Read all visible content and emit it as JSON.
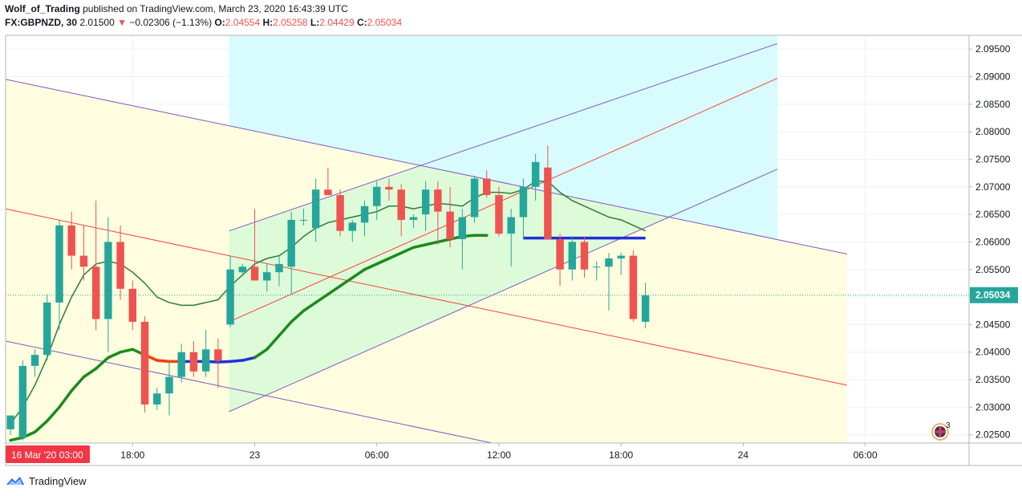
{
  "header": {
    "author": "Wolf_of_Trading",
    "published": "published on TradingView.com, March 23, 2020 16:43:39 UTC",
    "symbol": "FX:GBPNZD, 30",
    "price": "2.01500",
    "change": "−0.02306 (−1.13%)",
    "o_label": "O:",
    "o": "2.04554",
    "h_label": "H:",
    "h": "2.05258",
    "l_label": "L:",
    "l": "2.04429",
    "c_label": "C:",
    "c": "2.05034"
  },
  "footer": {
    "brand": "TradingView",
    "logo_icon": "tradingview-cloud-icon"
  },
  "flag_badge": {
    "icon": "uk-flag-icon",
    "count": "3"
  },
  "chart_data": {
    "type": "candlestick",
    "y_ticks": [
      "2.09500",
      "2.09000",
      "2.08500",
      "2.08000",
      "2.07500",
      "2.07000",
      "2.06500",
      "2.06000",
      "2.05500",
      "2.05000",
      "2.04500",
      "2.04000",
      "2.03500",
      "2.03000",
      "2.02500"
    ],
    "y_tick_values": [
      2.095,
      2.09,
      2.085,
      2.08,
      2.075,
      2.07,
      2.065,
      2.06,
      2.055,
      2.05,
      2.045,
      2.04,
      2.035,
      2.03,
      2.025
    ],
    "ylim": [
      2.0235,
      2.0975
    ],
    "x_ticks": [
      {
        "label": "18:00",
        "bar": 10
      },
      {
        "label": "23",
        "bar": 20
      },
      {
        "label": "06:00",
        "bar": 30
      },
      {
        "label": "12:00",
        "bar": 40
      },
      {
        "label": "18:00",
        "bar": 50
      },
      {
        "label": "24",
        "bar": 60
      },
      {
        "label": "06:00",
        "bar": 70
      }
    ],
    "x_range_bars": [
      -0.4,
      78.5
    ],
    "first_bar_label": "16 Mar '20  03:00",
    "last_price_label": "2.05034",
    "last_price": 2.05034,
    "colors": {
      "up": "#26a69a",
      "down": "#ef5350",
      "ma_thin": "#2e7d32",
      "ma_thick": "#1b8a1b",
      "channel": "#7e57c2",
      "median": "#f44336"
    },
    "candles": [
      {
        "o": 2.026,
        "h": 2.0285,
        "l": 2.025,
        "c": 2.0285
      },
      {
        "o": 2.0245,
        "h": 2.0385,
        "l": 2.024,
        "c": 2.0375
      },
      {
        "o": 2.0375,
        "h": 2.0405,
        "l": 2.0355,
        "c": 2.0395
      },
      {
        "o": 2.0395,
        "h": 2.0505,
        "l": 2.0385,
        "c": 2.049
      },
      {
        "o": 2.049,
        "h": 2.064,
        "l": 2.044,
        "c": 2.063
      },
      {
        "o": 2.063,
        "h": 2.0655,
        "l": 2.055,
        "c": 2.0575
      },
      {
        "o": 2.0575,
        "h": 2.063,
        "l": 2.053,
        "c": 2.0555
      },
      {
        "o": 2.0555,
        "h": 2.0675,
        "l": 2.044,
        "c": 2.046
      },
      {
        "o": 2.046,
        "h": 2.0645,
        "l": 2.04,
        "c": 2.06
      },
      {
        "o": 2.06,
        "h": 2.063,
        "l": 2.0495,
        "c": 2.0515
      },
      {
        "o": 2.0515,
        "h": 2.053,
        "l": 2.044,
        "c": 2.0455
      },
      {
        "o": 2.0455,
        "h": 2.0465,
        "l": 2.029,
        "c": 2.0305
      },
      {
        "o": 2.0305,
        "h": 2.0335,
        "l": 2.0295,
        "c": 2.0325
      },
      {
        "o": 2.0325,
        "h": 2.0385,
        "l": 2.0285,
        "c": 2.0355
      },
      {
        "o": 2.0355,
        "h": 2.0415,
        "l": 2.0345,
        "c": 2.04
      },
      {
        "o": 2.04,
        "h": 2.042,
        "l": 2.0355,
        "c": 2.0365
      },
      {
        "o": 2.0365,
        "h": 2.044,
        "l": 2.0355,
        "c": 2.0405
      },
      {
        "o": 2.0405,
        "h": 2.0425,
        "l": 2.0335,
        "c": 2.0385
      },
      {
        "o": 2.045,
        "h": 2.0575,
        "l": 2.0445,
        "c": 2.055
      },
      {
        "o": 2.0545,
        "h": 2.056,
        "l": 2.054,
        "c": 2.0555
      },
      {
        "o": 2.0555,
        "h": 2.066,
        "l": 2.053,
        "c": 2.053
      },
      {
        "o": 2.053,
        "h": 2.056,
        "l": 2.051,
        "c": 2.0545
      },
      {
        "o": 2.0545,
        "h": 2.0575,
        "l": 2.052,
        "c": 2.056
      },
      {
        "o": 2.0555,
        "h": 2.0655,
        "l": 2.0505,
        "c": 2.064
      },
      {
        "o": 2.064,
        "h": 2.066,
        "l": 2.063,
        "c": 2.064
      },
      {
        "o": 2.0625,
        "h": 2.0715,
        "l": 2.06,
        "c": 2.0695
      },
      {
        "o": 2.0695,
        "h": 2.0735,
        "l": 2.0685,
        "c": 2.0685
      },
      {
        "o": 2.0685,
        "h": 2.0695,
        "l": 2.061,
        "c": 2.062
      },
      {
        "o": 2.062,
        "h": 2.064,
        "l": 2.06,
        "c": 2.0635
      },
      {
        "o": 2.0635,
        "h": 2.0675,
        "l": 2.061,
        "c": 2.0665
      },
      {
        "o": 2.0665,
        "h": 2.071,
        "l": 2.064,
        "c": 2.07
      },
      {
        "o": 2.07,
        "h": 2.0715,
        "l": 2.0675,
        "c": 2.0695
      },
      {
        "o": 2.0695,
        "h": 2.0705,
        "l": 2.061,
        "c": 2.064
      },
      {
        "o": 2.064,
        "h": 2.065,
        "l": 2.0625,
        "c": 2.0645
      },
      {
        "o": 2.065,
        "h": 2.071,
        "l": 2.062,
        "c": 2.0695
      },
      {
        "o": 2.0695,
        "h": 2.071,
        "l": 2.0595,
        "c": 2.0655
      },
      {
        "o": 2.0655,
        "h": 2.07,
        "l": 2.059,
        "c": 2.0605
      },
      {
        "o": 2.0605,
        "h": 2.066,
        "l": 2.055,
        "c": 2.0645
      },
      {
        "o": 2.0645,
        "h": 2.072,
        "l": 2.0635,
        "c": 2.0715
      },
      {
        "o": 2.0715,
        "h": 2.073,
        "l": 2.068,
        "c": 2.0685
      },
      {
        "o": 2.0685,
        "h": 2.07,
        "l": 2.061,
        "c": 2.0615
      },
      {
        "o": 2.0615,
        "h": 2.066,
        "l": 2.0555,
        "c": 2.0645
      },
      {
        "o": 2.0645,
        "h": 2.0715,
        "l": 2.0605,
        "c": 2.07
      },
      {
        "o": 2.07,
        "h": 2.076,
        "l": 2.0675,
        "c": 2.0745
      },
      {
        "o": 2.0735,
        "h": 2.0775,
        "l": 2.061,
        "c": 2.0605
      },
      {
        "o": 2.0605,
        "h": 2.0615,
        "l": 2.052,
        "c": 2.055
      },
      {
        "o": 2.055,
        "h": 2.061,
        "l": 2.053,
        "c": 2.06
      },
      {
        "o": 2.06,
        "h": 2.061,
        "l": 2.0535,
        "c": 2.055
      },
      {
        "o": 2.0555,
        "h": 2.0565,
        "l": 2.053,
        "c": 2.0555
      },
      {
        "o": 2.0555,
        "h": 2.058,
        "l": 2.0475,
        "c": 2.057
      },
      {
        "o": 2.057,
        "h": 2.058,
        "l": 2.054,
        "c": 2.0575
      },
      {
        "o": 2.0575,
        "h": 2.0585,
        "l": 2.0455,
        "c": 2.046
      },
      {
        "o": 2.0455,
        "h": 2.0526,
        "l": 2.0443,
        "c": 2.0503
      }
    ],
    "ma_thin": [
      2.027,
      2.03,
      2.034,
      2.039,
      2.045,
      2.05,
      2.054,
      2.056,
      2.0565,
      2.056,
      2.0545,
      2.0525,
      2.05,
      2.049,
      2.0485,
      2.0485,
      2.049,
      2.0495,
      2.052,
      2.054,
      2.056,
      2.057,
      2.0575,
      2.059,
      2.061,
      2.0625,
      2.0635,
      2.064,
      2.0645,
      2.065,
      2.0655,
      2.0665,
      2.0665,
      2.066,
      2.0665,
      2.067,
      2.0668,
      2.0665,
      2.068,
      2.069,
      2.069,
      2.0688,
      2.0695,
      2.071,
      2.071,
      2.069,
      2.0675,
      2.0665,
      2.0655,
      2.0645,
      2.064,
      2.063,
      2.062
    ],
    "ma_thick": [
      2.024,
      2.0245,
      2.0255,
      2.0275,
      2.03,
      2.033,
      2.0355,
      2.037,
      2.039,
      2.04,
      2.0405,
      2.0395,
      2.0385,
      2.0383,
      2.0383,
      2.0383,
      2.0383,
      2.0382,
      2.0383,
      2.0385,
      2.039,
      2.0405,
      2.043,
      2.0455,
      2.0475,
      2.049,
      2.0505,
      2.052,
      2.0535,
      2.055,
      2.056,
      2.057,
      2.058,
      2.059,
      2.0595,
      2.06,
      2.0605,
      2.061,
      2.0612,
      2.0612
    ],
    "ma_thick_colors": [
      "#1b8a1b",
      "#1b8a1b",
      "#1b8a1b",
      "#1b8a1b",
      "#1b8a1b",
      "#1b8a1b",
      "#1b8a1b",
      "#1b8a1b",
      "#1b8a1b",
      "#1b8a1b",
      "#1b8a1b",
      "#ff3d00",
      "#ff3d00",
      "#ff3d00",
      "#2130d8",
      "#2130d8",
      "#2130d8",
      "#2130d8",
      "#2130d8",
      "#2130d8",
      "#1b8a1b",
      "#1b8a1b",
      "#1b8a1b",
      "#1b8a1b",
      "#1b8a1b",
      "#1b8a1b",
      "#1b8a1b",
      "#1b8a1b",
      "#1b8a1b",
      "#1b8a1b",
      "#1b8a1b",
      "#1b8a1b",
      "#1b8a1b",
      "#1b8a1b",
      "#1b8a1b",
      "#1b8a1b",
      "#1b8a1b",
      "#1b8a1b",
      "#1b8a1b",
      "#ff3d00"
    ],
    "ma_thick_start_bar": 0,
    "ma_thick_tail": {
      "from_bar": 42,
      "to_bar": 52,
      "value": 2.0607,
      "color": "#2130d8"
    },
    "channel_down": {
      "from_bar": -0.4,
      "to_bar": 68.5,
      "upper": [
        2.0895,
        2.0578
      ],
      "median": [
        2.066,
        2.034
      ],
      "lower": [
        2.042,
        2.01
      ],
      "fill": "#fffde0"
    },
    "channel_up": {
      "from_bar": 17.9,
      "to_bar": 62.8,
      "upper": [
        2.062,
        2.096
      ],
      "median": [
        2.0455,
        2.0897
      ],
      "lower": [
        2.0292,
        2.0732
      ],
      "fill_upper": "#d8fbfd",
      "fill_lower": "#dcfbd8"
    }
  }
}
